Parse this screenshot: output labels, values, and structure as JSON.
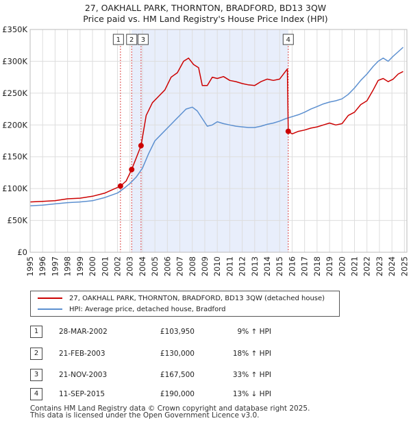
{
  "title_line1": "27, OAKHALL PARK, THORNTON, BRADFORD, BD13 3QW",
  "title_line2": "Price paid vs. HM Land Registry's House Price Index (HPI)",
  "legend": {
    "property": "27, OAKHALL PARK, THORNTON, BRADFORD, BD13 3QW (detached house)",
    "hpi": "HPI: Average price, detached house, Bradford"
  },
  "colors": {
    "property": "#cc0000",
    "hpi": "#5b8fd0",
    "shade": "#e8eefb",
    "vline": "#dd4444",
    "grid": "#dddddd"
  },
  "transactions": [
    {
      "num": "1",
      "date": "28-MAR-2002",
      "price": "£103,950",
      "hpi_delta": "9% ↑ HPI"
    },
    {
      "num": "2",
      "date": "21-FEB-2003",
      "price": "£130,000",
      "hpi_delta": "18% ↑ HPI"
    },
    {
      "num": "3",
      "date": "21-NOV-2003",
      "price": "£167,500",
      "hpi_delta": "33% ↑ HPI"
    },
    {
      "num": "4",
      "date": "11-SEP-2015",
      "price": "£190,000",
      "hpi_delta": "13% ↓ HPI"
    }
  ],
  "footer": {
    "line1": "Contains HM Land Registry data © Crown copyright and database right 2025.",
    "line2": "This data is licensed under the Open Government Licence v3.0."
  },
  "chart_data": {
    "type": "line",
    "xlim": [
      1995,
      2025.2
    ],
    "ylim": [
      0,
      350000
    ],
    "yticks": [
      0,
      50000,
      100000,
      150000,
      200000,
      250000,
      300000,
      350000
    ],
    "ytick_labels": [
      "£0",
      "£50K",
      "£100K",
      "£150K",
      "£200K",
      "£250K",
      "£300K",
      "£350K"
    ],
    "xticks": [
      1995,
      1996,
      1997,
      1998,
      1999,
      2000,
      2001,
      2002,
      2003,
      2004,
      2005,
      2006,
      2007,
      2008,
      2009,
      2010,
      2011,
      2012,
      2013,
      2014,
      2015,
      2016,
      2017,
      2018,
      2019,
      2020,
      2021,
      2022,
      2023,
      2024,
      2025
    ],
    "shaded_range": [
      2003.13,
      2015.69
    ],
    "sale_markers": [
      {
        "label": "1",
        "x": 2002.24,
        "y": 103950
      },
      {
        "label": "2",
        "x": 2003.14,
        "y": 130000
      },
      {
        "label": "3",
        "x": 2003.89,
        "y": 167500
      },
      {
        "label": "4",
        "x": 2015.69,
        "y": 190000
      }
    ],
    "series": [
      {
        "name": "27, OAKHALL PARK, THORNTON, BRADFORD, BD13 3QW (detached house)",
        "color": "#cc0000",
        "x": [
          1995,
          1996,
          1997,
          1998,
          1999,
          2000,
          2001,
          2002.24,
          2002.7,
          2003.14,
          2003.5,
          2003.89,
          2004.3,
          2004.8,
          2005.3,
          2005.8,
          2006.3,
          2006.8,
          2007.3,
          2007.7,
          2008.1,
          2008.5,
          2008.8,
          2009.2,
          2009.6,
          2010.0,
          2010.5,
          2011.0,
          2011.5,
          2012.0,
          2012.5,
          2013.0,
          2013.5,
          2014.0,
          2014.5,
          2015.0,
          2015.5,
          2015.62,
          2015.69,
          2016.0,
          2016.5,
          2017.0,
          2017.5,
          2018.0,
          2018.5,
          2019.0,
          2019.5,
          2020.0,
          2020.5,
          2021.0,
          2021.5,
          2022.0,
          2022.5,
          2022.9,
          2023.3,
          2023.7,
          2024.1,
          2024.5,
          2024.9
        ],
        "y": [
          79000,
          80000,
          81000,
          84000,
          85000,
          88000,
          93000,
          103950,
          112000,
          130000,
          148000,
          167500,
          215000,
          235000,
          245000,
          255000,
          275000,
          282000,
          300000,
          305000,
          295000,
          290000,
          262000,
          262000,
          275000,
          273000,
          276000,
          270000,
          268000,
          265000,
          263000,
          262000,
          268000,
          272000,
          270000,
          272000,
          285000,
          288000,
          190000,
          186000,
          190000,
          192000,
          195000,
          197000,
          200000,
          203000,
          200000,
          202000,
          215000,
          220000,
          232000,
          238000,
          255000,
          270000,
          273000,
          268000,
          272000,
          280000,
          284000
        ]
      },
      {
        "name": "HPI: Average price, detached house, Bradford",
        "color": "#5b8fd0",
        "x": [
          1995,
          1996,
          1997,
          1998,
          1999,
          2000,
          2001,
          2002.0,
          2002.5,
          2003.0,
          2003.5,
          2004.0,
          2004.5,
          2005.0,
          2005.5,
          2006.0,
          2006.5,
          2007.0,
          2007.5,
          2008.0,
          2008.4,
          2008.8,
          2009.2,
          2009.6,
          2010.0,
          2010.5,
          2011.0,
          2011.5,
          2012.0,
          2012.5,
          2013.0,
          2013.5,
          2014.0,
          2014.5,
          2015.0,
          2015.5,
          2016.0,
          2016.5,
          2017.0,
          2017.5,
          2018.0,
          2018.5,
          2019.0,
          2019.5,
          2020.0,
          2020.5,
          2021.0,
          2021.5,
          2022.0,
          2022.5,
          2022.9,
          2023.3,
          2023.7,
          2024.1,
          2024.5,
          2024.9
        ],
        "y": [
          73000,
          74000,
          76000,
          78000,
          79000,
          81000,
          86000,
          93000,
          100000,
          108000,
          118000,
          132000,
          155000,
          175000,
          185000,
          195000,
          205000,
          215000,
          225000,
          228000,
          222000,
          210000,
          198000,
          200000,
          205000,
          202000,
          200000,
          198000,
          197000,
          196000,
          196000,
          198000,
          201000,
          203000,
          206000,
          210000,
          213000,
          216000,
          220000,
          225000,
          229000,
          233000,
          236000,
          238000,
          241000,
          248000,
          258000,
          270000,
          280000,
          292000,
          300000,
          305000,
          300000,
          308000,
          315000,
          322000
        ]
      }
    ]
  }
}
